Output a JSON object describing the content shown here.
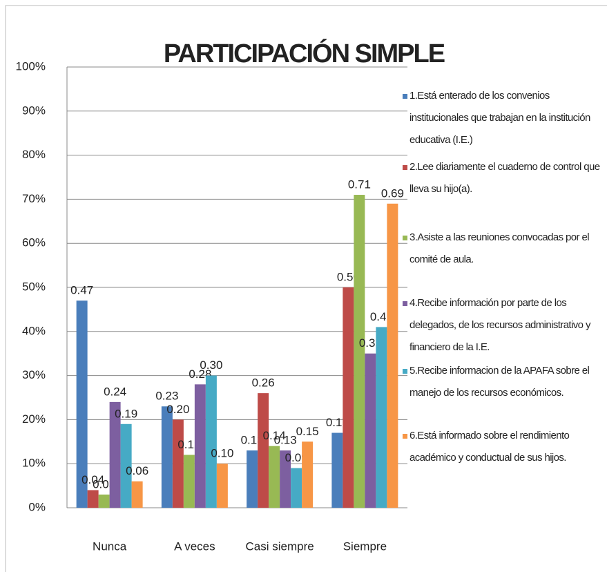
{
  "chart_data": {
    "type": "bar",
    "title": "PARTICIPACIÓN SIMPLE",
    "categories": [
      "Nunca",
      "A veces",
      "Casi siempre",
      "Siempre"
    ],
    "series": [
      {
        "name": "1.Está enterado de los convenios institucionales que trabajan en la institución educativa (I.E.)",
        "color": "#4a7ebb",
        "values": [
          47,
          23,
          13,
          17
        ],
        "value_labels": [
          "0.47",
          "0.23",
          "0.13",
          "0.17"
        ]
      },
      {
        "name": "2.Lee diariamente el cuaderno de control que lleva su hijo(a).",
        "color": "#be4b48",
        "values": [
          4,
          20,
          26,
          50
        ],
        "value_labels": [
          "0.04",
          "0.20",
          "0.26",
          "0.50"
        ]
      },
      {
        "name": "3.Asiste a las reuniones convocadas por el comité de aula.",
        "color": "#98b954",
        "values": [
          3,
          12,
          14,
          71
        ],
        "value_labels": [
          "0.03",
          "0.12",
          "0.14",
          "0.71"
        ]
      },
      {
        "name": "4.Recibe información por parte de los delegados, de los recursos administrativo y financiero de la I.E.",
        "color": "#7d5fa0",
        "values": [
          24,
          28,
          13,
          35
        ],
        "value_labels": [
          "0.24",
          "0.28",
          "0.13",
          "0.35"
        ]
      },
      {
        "name": "5.Recibe informacion de la APAFA sobre el manejo de los recursos económicos.",
        "color": "#46aac5",
        "values": [
          19,
          30,
          9,
          41
        ],
        "value_labels": [
          "0.19",
          "0.30",
          "0.09",
          "0.41"
        ]
      },
      {
        "name": "6.Está informado sobre el rendimiento académico y conductual de sus hijos.",
        "color": "#f79646",
        "values": [
          6,
          10,
          15,
          69
        ],
        "value_labels": [
          "0.06",
          "0.10",
          "0.15",
          "0.69"
        ]
      }
    ],
    "ylim": [
      0,
      100
    ],
    "yticks": [
      {
        "value": 0,
        "label": "0%"
      },
      {
        "value": 10,
        "label": "10%"
      },
      {
        "value": 20,
        "label": "20%"
      },
      {
        "value": 30,
        "label": "30%"
      },
      {
        "value": 40,
        "label": "40%"
      },
      {
        "value": 50,
        "label": "50%"
      },
      {
        "value": 60,
        "label": "60%"
      },
      {
        "value": 70,
        "label": "70%"
      },
      {
        "value": 80,
        "label": "80%"
      },
      {
        "value": 90,
        "label": "90%"
      },
      {
        "value": 100,
        "label": "100%"
      }
    ],
    "grid": true,
    "legend": "right"
  }
}
